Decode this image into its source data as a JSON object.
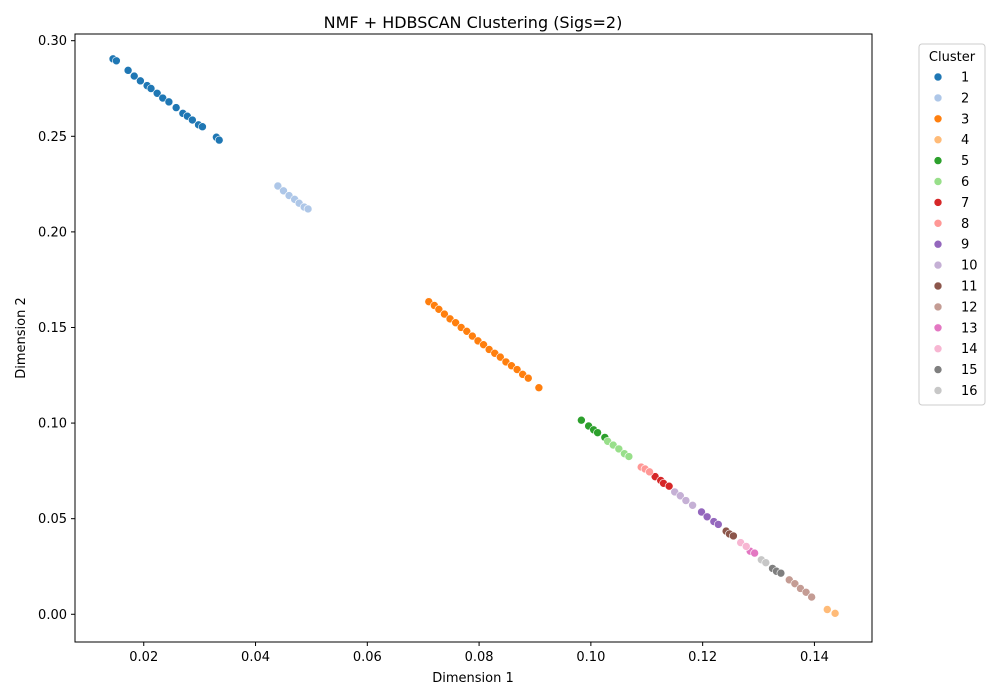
{
  "chart_data": {
    "type": "scatter",
    "title": "NMF + HDBSCAN Clustering (Sigs=2)",
    "xlabel": "Dimension 1",
    "ylabel": "Dimension 2",
    "xlim": [
      0.0077,
      0.1503
    ],
    "ylim": [
      -0.0145,
      0.3035
    ],
    "xticks": [
      0.02,
      0.04,
      0.06,
      0.08,
      0.1,
      0.12,
      0.14
    ],
    "xtick_labels": [
      "0.02",
      "0.04",
      "0.06",
      "0.08",
      "0.10",
      "0.12",
      "0.14"
    ],
    "yticks": [
      0.0,
      0.05,
      0.1,
      0.15,
      0.2,
      0.25,
      0.3
    ],
    "ytick_labels": [
      "0.00",
      "0.05",
      "0.10",
      "0.15",
      "0.20",
      "0.25",
      "0.30"
    ],
    "grid": false,
    "legend": {
      "title": "Cluster",
      "placement": "outside-right"
    },
    "series": [
      {
        "name": "1",
        "color": "#1f77b4",
        "x": [
          0.0145,
          0.0151,
          0.0172,
          0.0183,
          0.0194,
          0.0206,
          0.0213,
          0.0224,
          0.0234,
          0.0245,
          0.0258,
          0.027,
          0.0278,
          0.0287,
          0.0298,
          0.0305,
          0.033,
          0.0335
        ],
        "y": [
          0.2905,
          0.2895,
          0.2845,
          0.2815,
          0.279,
          0.2765,
          0.275,
          0.2725,
          0.27,
          0.268,
          0.265,
          0.262,
          0.2605,
          0.2585,
          0.256,
          0.255,
          0.2495,
          0.248
        ]
      },
      {
        "name": "2",
        "color": "#aec7e8",
        "x": [
          0.044,
          0.045,
          0.046,
          0.047,
          0.0478,
          0.0487,
          0.0494
        ],
        "y": [
          0.224,
          0.2215,
          0.219,
          0.217,
          0.215,
          0.213,
          0.212
        ]
      },
      {
        "name": "3",
        "color": "#ff7f0e",
        "x": [
          0.071,
          0.072,
          0.0728,
          0.0738,
          0.0748,
          0.0758,
          0.0768,
          0.0778,
          0.0788,
          0.0798,
          0.0808,
          0.0818,
          0.0828,
          0.0838,
          0.0848,
          0.0858,
          0.0868,
          0.0878,
          0.0888,
          0.0907
        ],
        "y": [
          0.1635,
          0.1615,
          0.1595,
          0.157,
          0.1545,
          0.1525,
          0.15,
          0.148,
          0.1455,
          0.143,
          0.141,
          0.1385,
          0.1365,
          0.1345,
          0.132,
          0.13,
          0.128,
          0.1255,
          0.1235,
          0.1185
        ]
      },
      {
        "name": "4",
        "color": "#ffbb78",
        "x": [
          0.1423,
          0.1437
        ],
        "y": [
          0.0025,
          0.0005
        ]
      },
      {
        "name": "5",
        "color": "#2ca02c",
        "x": [
          0.0983,
          0.0996,
          0.1005,
          0.1012,
          0.1025
        ],
        "y": [
          0.1015,
          0.0985,
          0.0965,
          0.095,
          0.0925
        ]
      },
      {
        "name": "6",
        "color": "#98df8a",
        "x": [
          0.103,
          0.104,
          0.105,
          0.106,
          0.1068
        ],
        "y": [
          0.0905,
          0.0885,
          0.0865,
          0.084,
          0.0825
        ]
      },
      {
        "name": "7",
        "color": "#d62728",
        "x": [
          0.1115,
          0.1125,
          0.113,
          0.114
        ],
        "y": [
          0.072,
          0.07,
          0.0685,
          0.067
        ]
      },
      {
        "name": "8",
        "color": "#ff9896",
        "x": [
          0.109,
          0.1097,
          0.1105
        ],
        "y": [
          0.077,
          0.076,
          0.0745
        ]
      },
      {
        "name": "9",
        "color": "#9467bd",
        "x": [
          0.1198,
          0.1208,
          0.122,
          0.1228
        ],
        "y": [
          0.0535,
          0.051,
          0.0485,
          0.047
        ]
      },
      {
        "name": "10",
        "color": "#c5b0d5",
        "x": [
          0.115,
          0.116,
          0.117,
          0.1182
        ],
        "y": [
          0.064,
          0.062,
          0.0595,
          0.057
        ]
      },
      {
        "name": "11",
        "color": "#8c564b",
        "x": [
          0.1242,
          0.1248,
          0.1255
        ],
        "y": [
          0.0435,
          0.042,
          0.041
        ]
      },
      {
        "name": "12",
        "color": "#c49c94",
        "x": [
          0.1355,
          0.1365,
          0.1375,
          0.1385,
          0.1395
        ],
        "y": [
          0.018,
          0.016,
          0.0135,
          0.0115,
          0.009
        ]
      },
      {
        "name": "13",
        "color": "#e377c2",
        "x": [
          0.1285,
          0.1293
        ],
        "y": [
          0.033,
          0.032
        ]
      },
      {
        "name": "14",
        "color": "#f7b6d2",
        "x": [
          0.1268,
          0.1278
        ],
        "y": [
          0.0375,
          0.0355
        ]
      },
      {
        "name": "15",
        "color": "#7f7f7f",
        "x": [
          0.1325,
          0.1332,
          0.134
        ],
        "y": [
          0.024,
          0.0225,
          0.0215
        ]
      },
      {
        "name": "16",
        "color": "#c7c7c7",
        "x": [
          0.1305,
          0.1313
        ],
        "y": [
          0.0285,
          0.027
        ]
      }
    ]
  }
}
